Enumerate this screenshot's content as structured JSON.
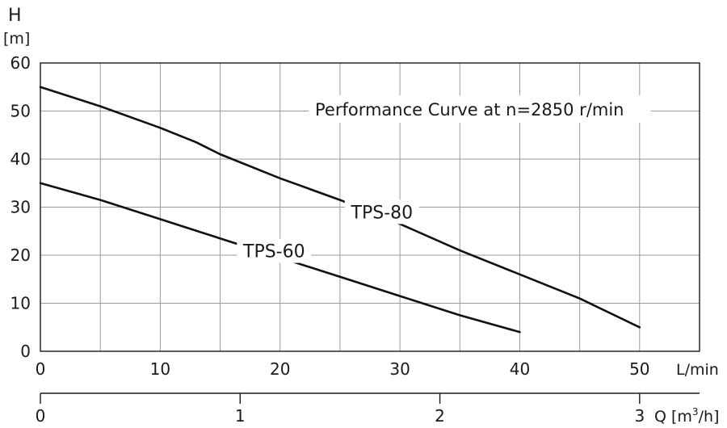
{
  "chart_data": {
    "type": "line",
    "title": "Performance Curve at n=2850 r/min",
    "y_axis": {
      "label": "H",
      "unit": "[m]",
      "min": 0,
      "max": 60,
      "ticks": [
        0,
        10,
        20,
        30,
        40,
        50,
        60
      ]
    },
    "x_axis": {
      "unit": "L/min",
      "min": 0,
      "max": 55,
      "ticks": [
        0,
        10,
        20,
        30,
        40,
        50
      ]
    },
    "x_axis_secondary": {
      "unit_prefix": "Q [m",
      "unit_sup": "3",
      "unit_suffix": "/h]",
      "min": 0,
      "max": 3.3,
      "ticks": [
        0,
        1,
        2,
        3
      ]
    },
    "grid": true,
    "series": [
      {
        "name": "TPS-80",
        "x": [
          0,
          5,
          10,
          13,
          15,
          20,
          25,
          30,
          35,
          40,
          45,
          50
        ],
        "y": [
          55,
          51,
          46.5,
          43.5,
          41,
          36,
          31.5,
          26.5,
          21,
          16,
          11,
          5
        ]
      },
      {
        "name": "TPS-60",
        "x": [
          0,
          5,
          10,
          15,
          20,
          25,
          30,
          35,
          40
        ],
        "y": [
          35,
          31.5,
          27.5,
          23.5,
          19.5,
          15.5,
          11.5,
          7.5,
          4
        ]
      }
    ]
  }
}
